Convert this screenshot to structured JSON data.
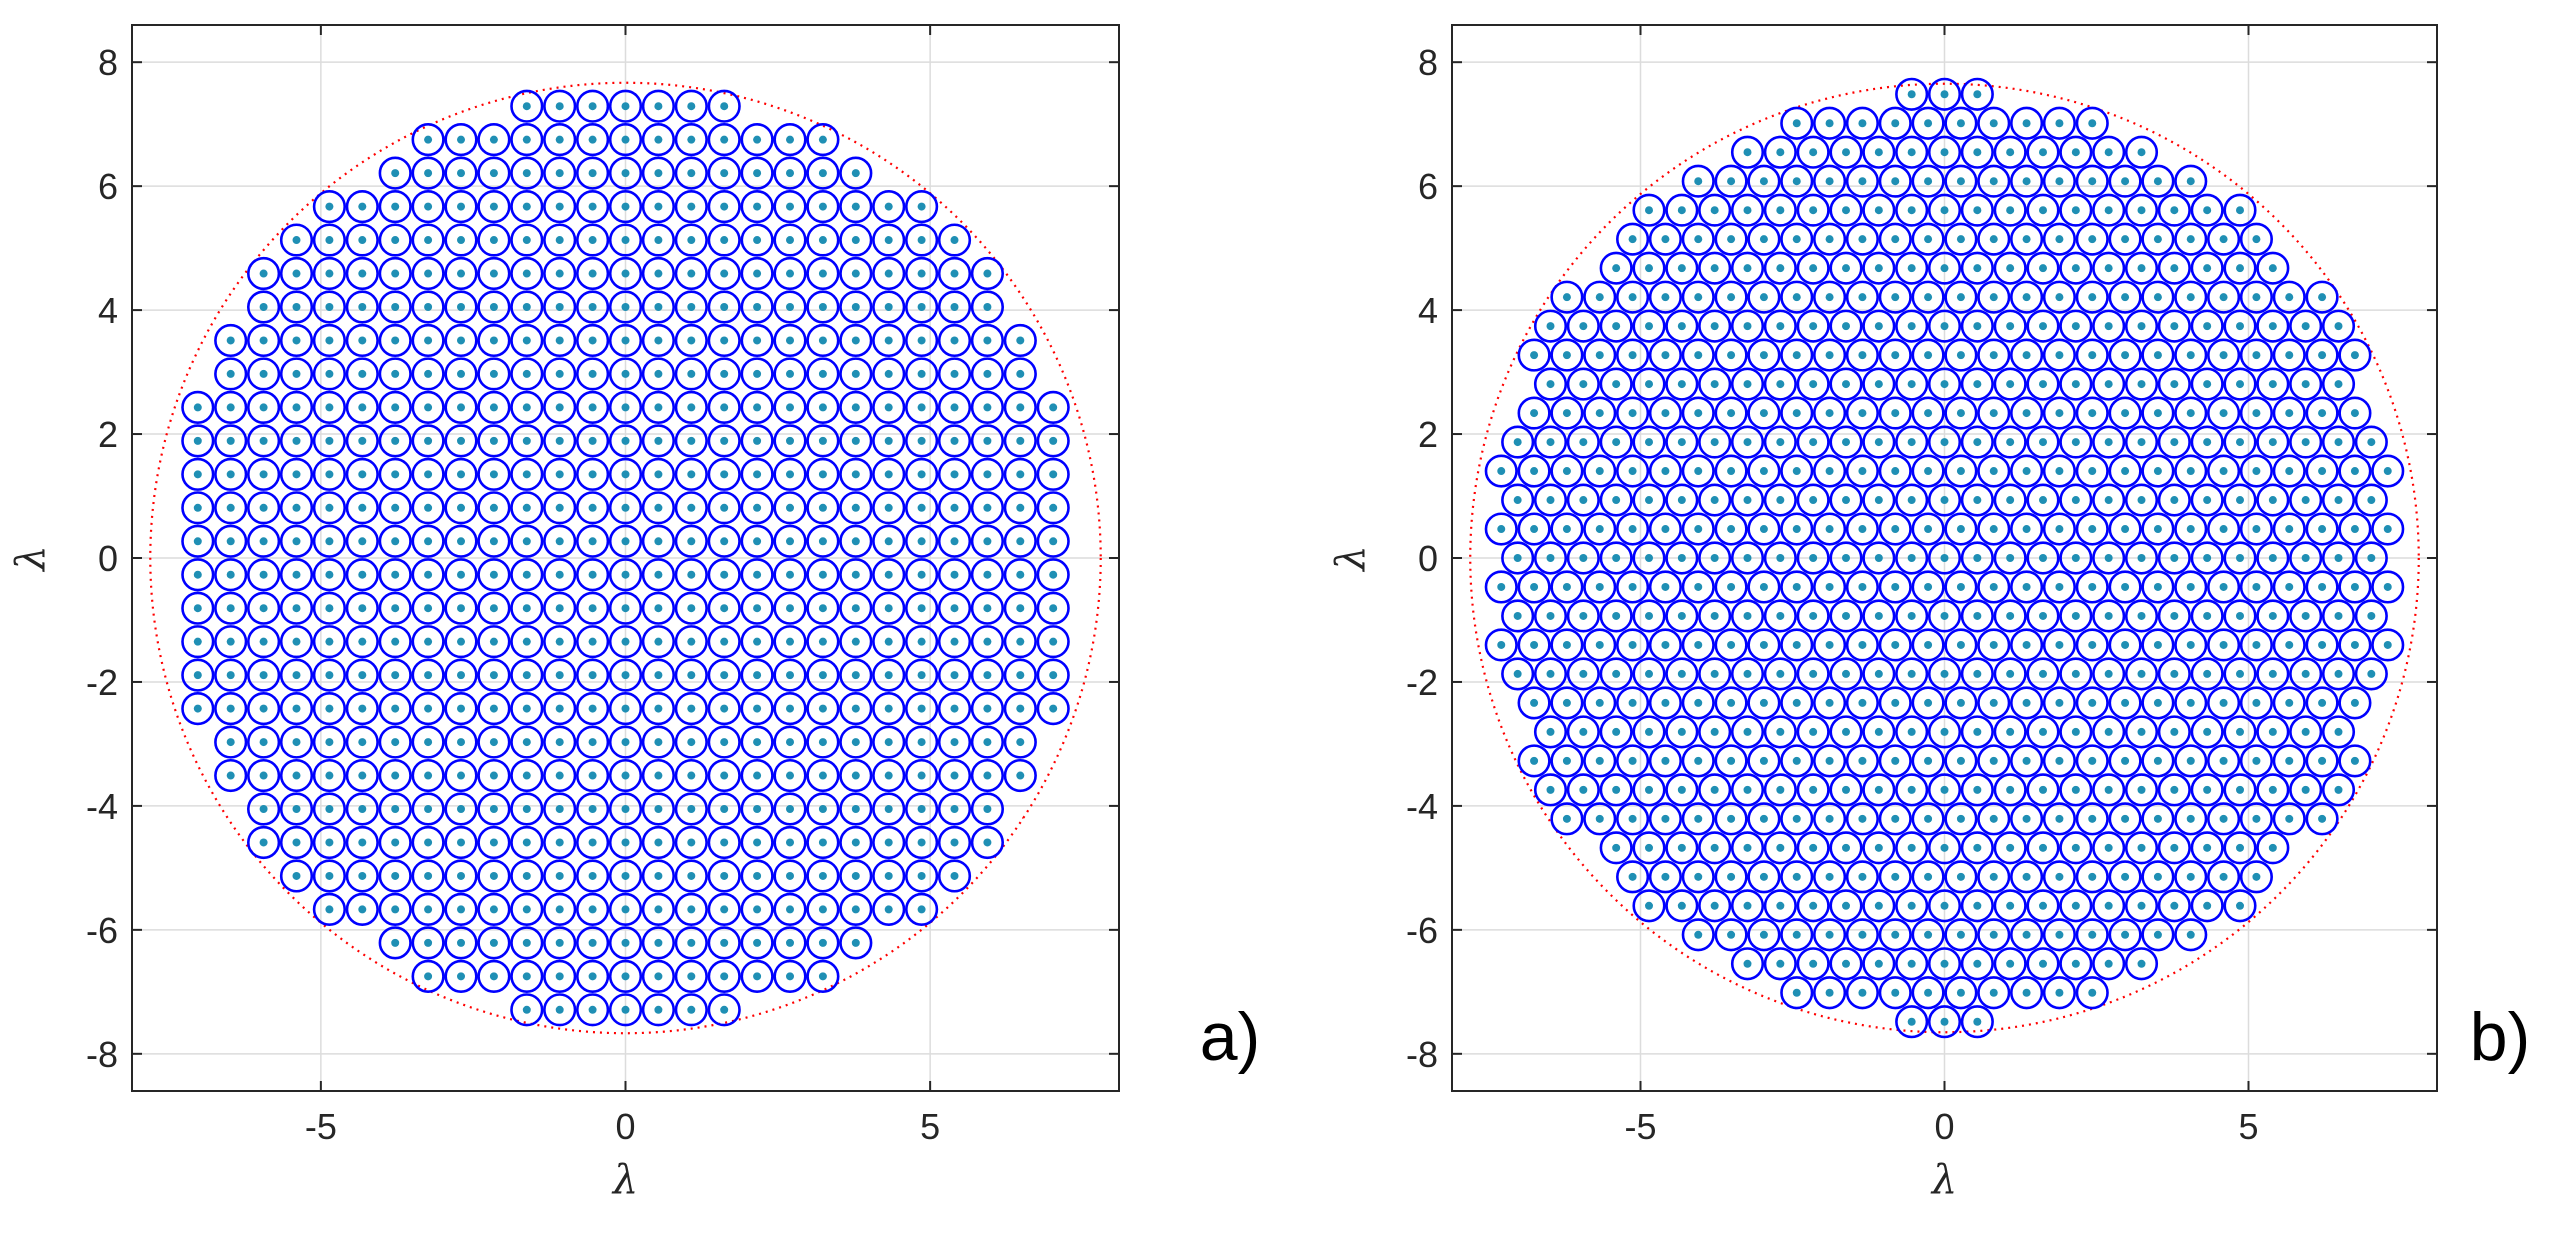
{
  "chart_data": [
    {
      "type": "scatter",
      "panel_label": "a)",
      "lattice": "square",
      "pitch": 0.54,
      "boundary_radius": 7.8,
      "xlabel": "λ",
      "ylabel": "λ",
      "xlim": [
        -8.1,
        8.1
      ],
      "ylim": [
        -8.6,
        8.6
      ],
      "xticks": [
        -5,
        0,
        5
      ],
      "yticks": [
        -8,
        -6,
        -4,
        -2,
        0,
        2,
        4,
        6,
        8
      ],
      "grid": true,
      "series": [
        {
          "role": "element-outline",
          "marker": "circle",
          "color": "#0000ff"
        },
        {
          "role": "element-center",
          "marker": "dot",
          "color": "#1f8fb4"
        },
        {
          "role": "aperture-boundary",
          "style": "dotted",
          "color": "#ff0000"
        }
      ]
    },
    {
      "type": "scatter",
      "panel_label": "b)",
      "lattice": "hexagonal",
      "pitch": 0.54,
      "boundary_radius": 7.8,
      "xlabel": "λ",
      "ylabel": "λ",
      "xlim": [
        -8.1,
        8.1
      ],
      "ylim": [
        -8.6,
        8.6
      ],
      "xticks": [
        -5,
        0,
        5
      ],
      "yticks": [
        -8,
        -6,
        -4,
        -2,
        0,
        2,
        4,
        6,
        8
      ],
      "grid": true,
      "series": [
        {
          "role": "element-outline",
          "marker": "circle",
          "color": "#0000ff"
        },
        {
          "role": "element-center",
          "marker": "dot",
          "color": "#1f8fb4"
        },
        {
          "role": "aperture-boundary",
          "style": "dotted",
          "color": "#ff0000"
        }
      ]
    }
  ]
}
